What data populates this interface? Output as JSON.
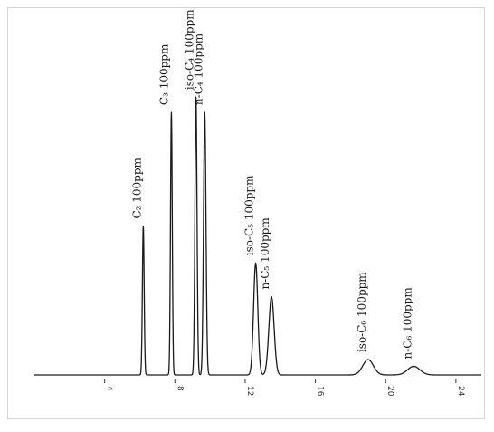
{
  "chart_data": {
    "type": "line",
    "title": "",
    "xlabel": "",
    "ylabel": "",
    "xlim": [
      0,
      25.5
    ],
    "ylim": [
      0,
      100
    ],
    "x_ticks": [
      {
        "value": 4,
        "label": "4"
      },
      {
        "value": 8,
        "label": "8"
      },
      {
        "value": 12,
        "label": "12"
      },
      {
        "value": 16,
        "label": "16"
      },
      {
        "value": 20,
        "label": "20"
      },
      {
        "value": 24,
        "label": "24"
      }
    ],
    "baseline": 1.5,
    "peaks": [
      {
        "label": "C₂ 100ppm",
        "rt": 6.2,
        "height": 50,
        "width": 0.05
      },
      {
        "label": "C₃ 100ppm",
        "rt": 7.8,
        "height": 87,
        "width": 0.05
      },
      {
        "label": "iso-C₄ 100ppm",
        "rt": 9.2,
        "height": 92,
        "width": 0.06
      },
      {
        "label": "n-C₄ 100ppm",
        "rt": 9.7,
        "height": 87,
        "width": 0.07
      },
      {
        "label": "iso-C₅ 100ppm",
        "rt": 12.6,
        "height": 38,
        "width": 0.12
      },
      {
        "label": "n-C₅ 100ppm",
        "rt": 13.5,
        "height": 27,
        "width": 0.15
      },
      {
        "label": "iso-C₆ 100ppm",
        "rt": 19.0,
        "height": 6.5,
        "width": 0.3
      },
      {
        "label": "n-C₆ 100ppm",
        "rt": 21.6,
        "height": 4.3,
        "width": 0.35
      }
    ]
  }
}
